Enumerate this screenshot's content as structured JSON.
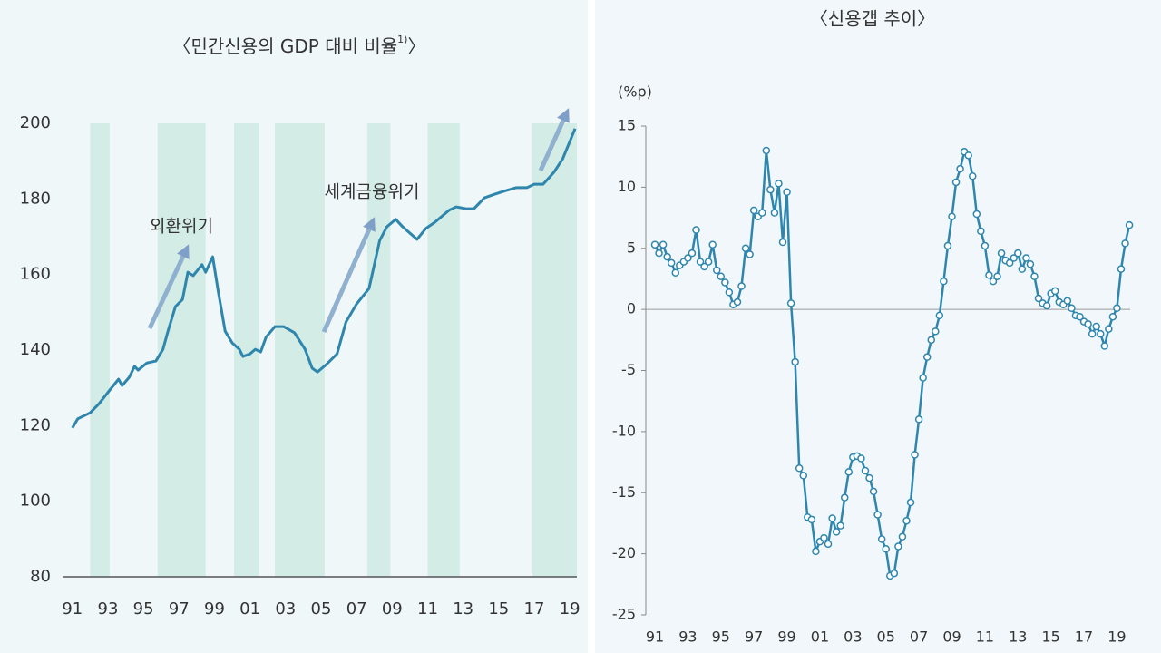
{
  "chart_data": [
    {
      "type": "line",
      "title": "〈민간신용의 GDP 대비 비율",
      "title_sup": "1)",
      "title_end": "〉",
      "x": [
        1991.0,
        1991.3,
        1992.0,
        1992.5,
        1993.1,
        1993.6,
        1993.8,
        1994.2,
        1994.5,
        1994.7,
        1995.2,
        1995.7,
        1996.1,
        1996.4,
        1996.8,
        1997.2,
        1997.5,
        1997.8,
        1998.3,
        1998.5,
        1998.9,
        1999.2,
        1999.6,
        2000.0,
        2000.4,
        2000.6,
        2001.0,
        2001.3,
        2001.6,
        2001.9,
        2002.4,
        2002.9,
        2003.5,
        2004.1,
        2004.5,
        2004.8,
        2005.3,
        2005.9,
        2006.4,
        2007.0,
        2007.7,
        2008.3,
        2008.7,
        2009.2,
        2009.6,
        2010.4,
        2010.9,
        2011.4,
        2012.2,
        2012.6,
        2013.2,
        2013.6,
        2014.2,
        2014.8,
        2015.4,
        2016.0,
        2016.6,
        2017.0,
        2017.5,
        2018.1,
        2018.6,
        2019.3
      ],
      "values": [
        119.4,
        121.8,
        123.4,
        125.8,
        129.4,
        132.3,
        130.6,
        132.8,
        135.7,
        134.7,
        136.6,
        137.1,
        140.2,
        145.3,
        151.5,
        153.4,
        160.6,
        159.7,
        162.6,
        160.6,
        164.7,
        155.8,
        145.0,
        141.9,
        140.2,
        138.3,
        139.0,
        140.2,
        139.5,
        143.4,
        146.2,
        146.2,
        144.6,
        140.2,
        135.2,
        134.2,
        136.2,
        139.0,
        147.4,
        152.2,
        156.3,
        169.0,
        172.6,
        174.6,
        172.6,
        169.3,
        172.2,
        173.8,
        177.0,
        177.9,
        177.4,
        177.4,
        180.3,
        181.3,
        182.2,
        183.0,
        183.0,
        183.9,
        183.9,
        187.0,
        190.6,
        198.6
      ],
      "color": "#2f86ad",
      "shaded": [
        [
          1992.0,
          1993.1
        ],
        [
          1995.8,
          1998.5
        ],
        [
          2000.1,
          2001.5
        ],
        [
          2002.4,
          2005.2
        ],
        [
          2007.6,
          2008.9
        ],
        [
          2011.0,
          2012.8
        ],
        [
          2016.9,
          2019.4
        ]
      ],
      "shade_color": "#d3ece6",
      "xlim": [
        1990.5,
        2019.4
      ],
      "xticks": [
        {
          "value": 1991,
          "label": "91"
        },
        {
          "value": 1993,
          "label": "93"
        },
        {
          "value": 1995,
          "label": "95"
        },
        {
          "value": 1997,
          "label": "97"
        },
        {
          "value": 1999,
          "label": "99"
        },
        {
          "value": 2001,
          "label": "01"
        },
        {
          "value": 2003,
          "label": "03"
        },
        {
          "value": 2005,
          "label": "05"
        },
        {
          "value": 2007,
          "label": "07"
        },
        {
          "value": 2009,
          "label": "09"
        },
        {
          "value": 2011,
          "label": "11"
        },
        {
          "value": 2013,
          "label": "13"
        },
        {
          "value": 2015,
          "label": "15"
        },
        {
          "value": 2017,
          "label": "17"
        },
        {
          "value": 2019,
          "label": "19"
        }
      ],
      "ylim": [
        80,
        200
      ],
      "yticks": [
        80,
        100,
        120,
        140,
        160,
        180,
        200
      ],
      "annotations": [
        "외환위기",
        "세계금융위기"
      ],
      "x_axis_line": true,
      "markers": false
    },
    {
      "type": "line",
      "title": "〈신용갭 추이〉",
      "y_unit": "(%p)",
      "x": [
        1991,
        1991.25,
        1991.5,
        1991.75,
        1992,
        1992.25,
        1992.5,
        1992.75,
        1993,
        1993.25,
        1993.5,
        1993.75,
        1994,
        1994.25,
        1994.5,
        1994.75,
        1995,
        1995.25,
        1995.5,
        1995.75,
        1996,
        1996.25,
        1996.5,
        1996.75,
        1997,
        1997.25,
        1997.5,
        1997.75,
        1998,
        1998.25,
        1998.5,
        1998.75,
        1999,
        1999.25,
        1999.5,
        1999.75,
        2000,
        2000.25,
        2000.5,
        2000.75,
        2001,
        2001.25,
        2001.5,
        2001.75,
        2002,
        2002.25,
        2002.5,
        2002.75,
        2003,
        2003.25,
        2003.5,
        2003.75,
        2004,
        2004.25,
        2004.5,
        2004.75,
        2005,
        2005.25,
        2005.5,
        2005.75,
        2006,
        2006.25,
        2006.5,
        2006.75,
        2007,
        2007.25,
        2007.5,
        2007.75,
        2008,
        2008.25,
        2008.5,
        2008.75,
        2009,
        2009.25,
        2009.5,
        2009.75,
        2010,
        2010.25,
        2010.5,
        2010.75,
        2011,
        2011.25,
        2011.5,
        2011.75,
        2012,
        2012.25,
        2012.5,
        2012.75,
        2013,
        2013.25,
        2013.5,
        2013.75,
        2014,
        2014.25,
        2014.5,
        2014.75,
        2015,
        2015.25,
        2015.5,
        2015.75,
        2016,
        2016.25,
        2016.5,
        2016.75,
        2017,
        2017.25,
        2017.5,
        2017.75,
        2018,
        2018.25,
        2018.5,
        2018.75,
        2019,
        2019.25,
        2019.5,
        2019.75
      ],
      "values": [
        5.3,
        4.6,
        5.3,
        4.3,
        3.8,
        3.0,
        3.6,
        3.9,
        4.2,
        4.6,
        6.5,
        3.9,
        3.5,
        3.9,
        5.3,
        3.2,
        2.7,
        2.2,
        1.4,
        0.4,
        0.6,
        1.9,
        5.0,
        4.5,
        8.1,
        7.6,
        7.9,
        13.0,
        9.8,
        7.9,
        10.3,
        5.5,
        9.6,
        0.5,
        -4.3,
        -13.0,
        -13.6,
        -17.0,
        -17.2,
        -19.8,
        -19.0,
        -18.7,
        -19.2,
        -17.1,
        -18.2,
        -17.7,
        -15.4,
        -13.3,
        -12.1,
        -12.0,
        -12.2,
        -13.2,
        -13.8,
        -14.9,
        -16.8,
        -18.8,
        -19.6,
        -21.8,
        -21.6,
        -19.4,
        -18.6,
        -17.3,
        -15.8,
        -11.9,
        -9.0,
        -5.6,
        -3.9,
        -2.5,
        -1.8,
        -0.5,
        2.3,
        5.2,
        7.6,
        10.4,
        11.5,
        12.9,
        12.6,
        10.9,
        7.8,
        6.4,
        5.2,
        2.8,
        2.3,
        2.7,
        4.6,
        4.0,
        3.8,
        4.2,
        4.6,
        3.3,
        4.2,
        3.7,
        2.7,
        0.9,
        0.5,
        0.3,
        1.3,
        1.5,
        0.6,
        0.4,
        0.7,
        0.1,
        -0.5,
        -0.6,
        -1.0,
        -1.2,
        -2.0,
        -1.4,
        -2.0,
        -3.0,
        -1.6,
        -0.6,
        0.1,
        3.3,
        5.4,
        6.9
      ],
      "color": "#2f86ad",
      "xlim": [
        1990.45,
        2019.8
      ],
      "xticks": [
        {
          "value": 1991,
          "label": "91"
        },
        {
          "value": 1993,
          "label": "93"
        },
        {
          "value": 1995,
          "label": "95"
        },
        {
          "value": 1997,
          "label": "97"
        },
        {
          "value": 1999,
          "label": "99"
        },
        {
          "value": 2001,
          "label": "01"
        },
        {
          "value": 2003,
          "label": "03"
        },
        {
          "value": 2005,
          "label": "05"
        },
        {
          "value": 2007,
          "label": "07"
        },
        {
          "value": 2009,
          "label": "09"
        },
        {
          "value": 2011,
          "label": "11"
        },
        {
          "value": 2013,
          "label": "13"
        },
        {
          "value": 2015,
          "label": "15"
        },
        {
          "value": 2017,
          "label": "17"
        },
        {
          "value": 2019,
          "label": "19"
        }
      ],
      "ylim": [
        -25,
        15
      ],
      "yticks": [
        -25,
        -20,
        -15,
        -10,
        -5,
        0,
        5,
        10,
        15
      ],
      "zero_line": true,
      "y_axis_line": true,
      "markers": true
    }
  ]
}
